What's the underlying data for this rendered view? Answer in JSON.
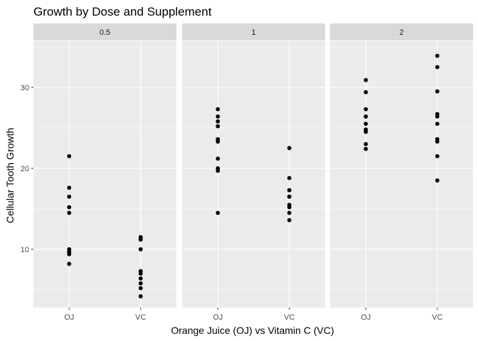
{
  "chart_data": {
    "type": "scatter",
    "title": "Growth by Dose and Supplement",
    "xlabel": "Orange Juice (OJ) vs Vitamin C (VC)",
    "ylabel": "Cellular Tooth Growth",
    "categories": [
      "OJ",
      "VC"
    ],
    "yticks": [
      10,
      20,
      30
    ],
    "ylim": [
      2.8,
      35.7
    ],
    "grid": true,
    "facets": [
      {
        "label": "0.5",
        "series": [
          {
            "category": "OJ",
            "values": [
              15.2,
              21.5,
              17.6,
              9.7,
              14.5,
              10.0,
              8.2,
              9.4,
              16.5,
              9.7
            ]
          },
          {
            "category": "VC",
            "values": [
              4.2,
              11.5,
              7.3,
              5.8,
              6.4,
              10.0,
              11.2,
              11.2,
              5.2,
              7.0
            ]
          }
        ]
      },
      {
        "label": "1",
        "series": [
          {
            "category": "OJ",
            "values": [
              19.7,
              23.3,
              23.6,
              26.4,
              20.0,
              25.2,
              25.8,
              21.2,
              14.5,
              27.3
            ]
          },
          {
            "category": "VC",
            "values": [
              16.5,
              16.5,
              15.2,
              17.3,
              22.5,
              17.3,
              13.6,
              14.5,
              18.8,
              15.5
            ]
          }
        ]
      },
      {
        "label": "2",
        "series": [
          {
            "category": "OJ",
            "values": [
              25.5,
              26.4,
              22.4,
              24.5,
              24.8,
              30.9,
              26.4,
              27.3,
              29.4,
              23.0
            ]
          },
          {
            "category": "VC",
            "values": [
              23.6,
              18.5,
              33.9,
              25.5,
              26.4,
              32.5,
              26.7,
              21.5,
              23.3,
              29.5
            ]
          }
        ]
      }
    ]
  }
}
